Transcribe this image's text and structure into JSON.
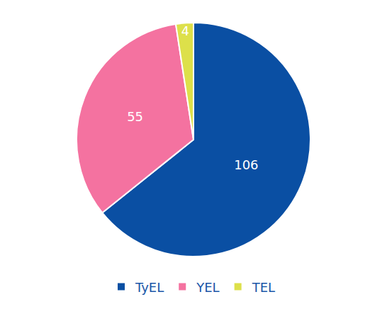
{
  "chart_data": {
    "type": "pie",
    "categories": [
      "TyEL",
      "YEL",
      "TEL"
    ],
    "values": [
      106,
      55,
      4
    ],
    "colors": [
      "#0a4fa3",
      "#f472a0",
      "#dde04a"
    ],
    "data_labels": true,
    "legend": "bottom"
  }
}
